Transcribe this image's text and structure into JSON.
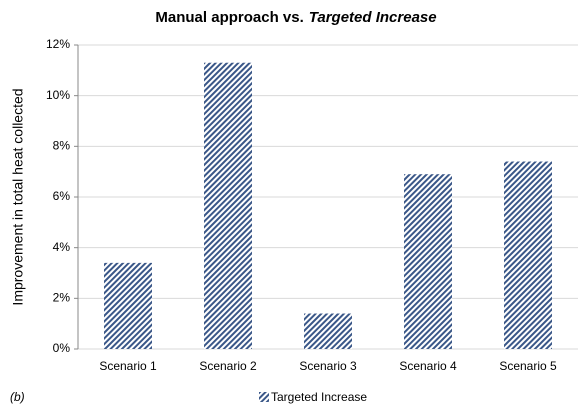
{
  "chart_data": {
    "type": "bar",
    "title": [
      "Manual approach vs.",
      "Targeted Increase"
    ],
    "ylabel": "Improvement in total heat collected",
    "annotation": "(b)",
    "categories": [
      "Scenario 1",
      "Scenario 2",
      "Scenario 3",
      "Scenario 4",
      "Scenario 5"
    ],
    "series": [
      {
        "name": "Targeted Increase",
        "color": "#3a5788",
        "values": [
          3.4,
          11.3,
          1.4,
          6.9,
          7.4
        ]
      }
    ],
    "ylim": [
      0,
      12
    ],
    "yticks": [
      {
        "value": 0,
        "label": "0%"
      },
      {
        "value": 2,
        "label": "2%"
      },
      {
        "value": 4,
        "label": "4%"
      },
      {
        "value": 6,
        "label": "6%"
      },
      {
        "value": 8,
        "label": "8%"
      },
      {
        "value": 10,
        "label": "10%"
      },
      {
        "value": 12,
        "label": "12%"
      }
    ],
    "grid": true,
    "legend": "bottom"
  }
}
